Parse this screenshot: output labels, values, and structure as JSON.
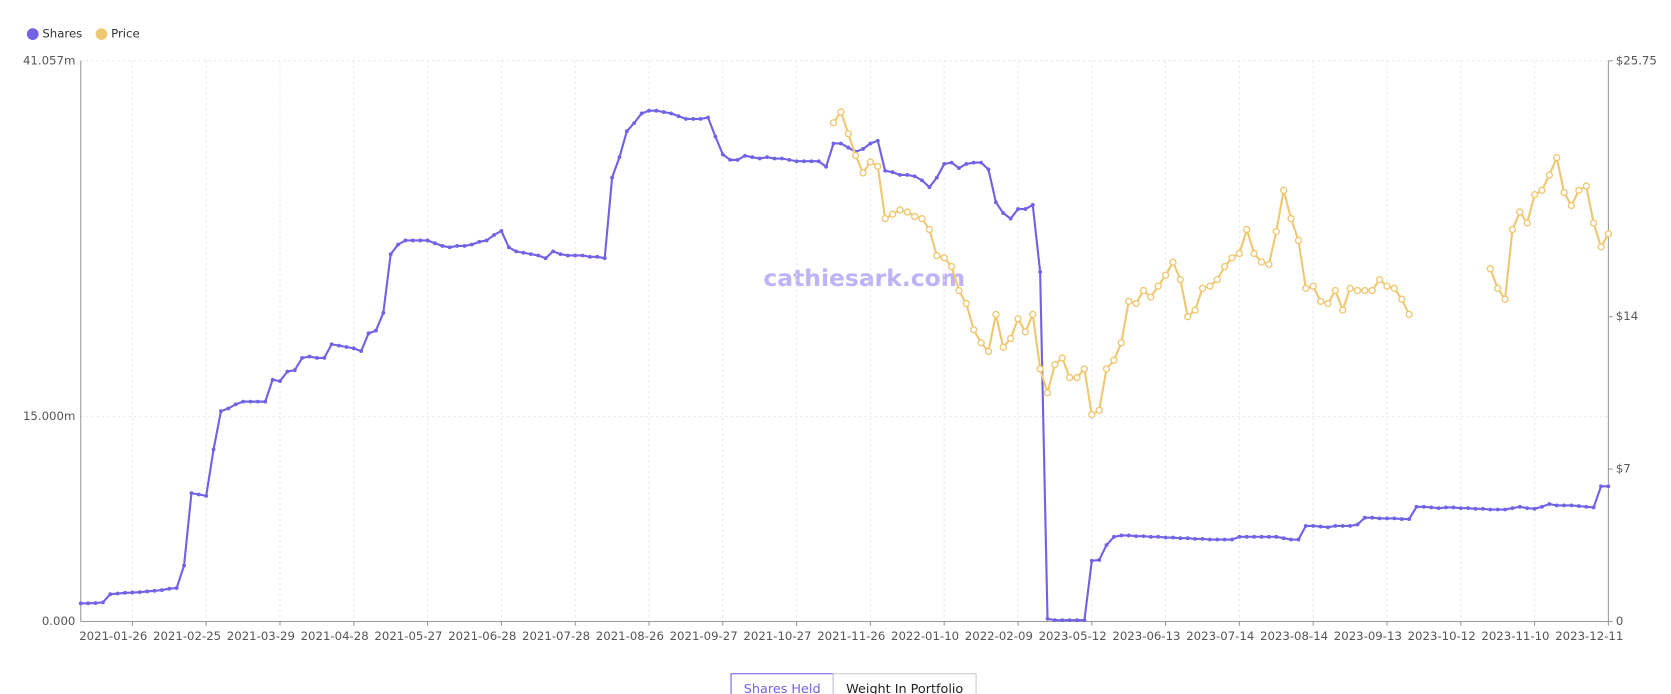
{
  "chart_data": {
    "type": "line",
    "watermark": "cathiesark.com",
    "categories": [
      null,
      null,
      null,
      null,
      null,
      null,
      null,
      "2021-01-26",
      null,
      null,
      null,
      null,
      null,
      null,
      null,
      null,
      null,
      "2021-02-25",
      null,
      null,
      null,
      null,
      null,
      null,
      null,
      null,
      null,
      "2021-03-29",
      null,
      null,
      null,
      null,
      null,
      null,
      null,
      null,
      null,
      "2021-04-28",
      null,
      null,
      null,
      null,
      null,
      null,
      null,
      null,
      null,
      "2021-05-27",
      null,
      null,
      null,
      null,
      null,
      null,
      null,
      null,
      null,
      "2021-06-28",
      null,
      null,
      null,
      null,
      null,
      null,
      null,
      null,
      null,
      "2021-07-28",
      null,
      null,
      null,
      null,
      null,
      null,
      null,
      null,
      null,
      "2021-08-26",
      null,
      null,
      null,
      null,
      null,
      null,
      null,
      null,
      null,
      "2021-09-27",
      null,
      null,
      null,
      null,
      null,
      null,
      null,
      null,
      null,
      "2021-10-27",
      null,
      null,
      null,
      null,
      null,
      null,
      null,
      null,
      null,
      "2021-11-26",
      null,
      null,
      null,
      null,
      null,
      null,
      null,
      null,
      null,
      "2022-01-10",
      null,
      null,
      null,
      null,
      null,
      null,
      null,
      null,
      null,
      "2022-02-09",
      null,
      null,
      null,
      null,
      null,
      null,
      null,
      null,
      null,
      "2023-05-12",
      null,
      null,
      null,
      null,
      null,
      null,
      null,
      null,
      null,
      "2023-06-13",
      null,
      null,
      null,
      null,
      null,
      null,
      null,
      null,
      null,
      "2023-07-14",
      null,
      null,
      null,
      null,
      null,
      null,
      null,
      null,
      null,
      "2023-08-14",
      null,
      null,
      null,
      null,
      null,
      null,
      null,
      null,
      null,
      "2023-09-13",
      null,
      null,
      null,
      null,
      null,
      null,
      null,
      null,
      null,
      "2023-10-12",
      null,
      null,
      null,
      null,
      null,
      null,
      null,
      null,
      null,
      "2023-11-10",
      null,
      null,
      null,
      null,
      null,
      null,
      null,
      null,
      null,
      "2023-12-11"
    ],
    "series": [
      {
        "name": "Shares",
        "color": "#7262e6",
        "axis": "y",
        "values": [
          1.33,
          1.33,
          1.35,
          1.4,
          2.0,
          2.05,
          2.1,
          2.12,
          2.15,
          2.2,
          2.25,
          2.3,
          2.4,
          2.45,
          4.1,
          9.4,
          9.3,
          9.2,
          12.6,
          15.4,
          15.6,
          15.9,
          16.1,
          16.1,
          16.1,
          16.1,
          17.7,
          17.6,
          18.3,
          18.4,
          19.3,
          19.4,
          19.3,
          19.3,
          20.3,
          20.2,
          20.1,
          20.0,
          19.8,
          21.1,
          21.3,
          22.6,
          26.9,
          27.6,
          27.9,
          27.9,
          27.9,
          27.9,
          27.7,
          27.5,
          27.4,
          27.5,
          27.5,
          27.6,
          27.8,
          27.9,
          28.3,
          28.6,
          27.4,
          27.1,
          27.0,
          26.9,
          26.8,
          26.6,
          27.1,
          26.9,
          26.8,
          26.8,
          26.8,
          26.7,
          26.7,
          26.6,
          32.5,
          34.0,
          35.9,
          36.5,
          37.2,
          37.4,
          37.4,
          37.3,
          37.2,
          37.0,
          36.8,
          36.8,
          36.8,
          36.9,
          35.5,
          34.2,
          33.8,
          33.8,
          34.1,
          34.0,
          33.9,
          34.0,
          33.9,
          33.9,
          33.8,
          33.7,
          33.7,
          33.7,
          33.7,
          33.3,
          35.0,
          35.0,
          34.7,
          34.4,
          34.6,
          35.0,
          35.2,
          33.0,
          32.9,
          32.7,
          32.7,
          32.6,
          32.3,
          31.8,
          32.5,
          33.5,
          33.6,
          33.2,
          33.5,
          33.6,
          33.6,
          33.1,
          30.7,
          29.9,
          29.5,
          30.2,
          30.2,
          30.5,
          25.6,
          0.2,
          0.1,
          0.1,
          0.1,
          0.1,
          0.1,
          4.45,
          4.5,
          5.6,
          6.2,
          6.3,
          6.3,
          6.25,
          6.25,
          6.2,
          6.2,
          6.15,
          6.15,
          6.1,
          6.1,
          6.05,
          6.05,
          6.0,
          6.0,
          6.0,
          6.0,
          6.2,
          6.2,
          6.2,
          6.2,
          6.2,
          6.2,
          6.1,
          6.0,
          6.0,
          7.0,
          7.0,
          6.95,
          6.9,
          7.0,
          7.0,
          7.0,
          7.1,
          7.6,
          7.6,
          7.55,
          7.55,
          7.55,
          7.5,
          7.5,
          8.4,
          8.4,
          8.35,
          8.3,
          8.35,
          8.35,
          8.3,
          8.3,
          8.25,
          8.25,
          8.2,
          8.2,
          8.2,
          8.3,
          8.4,
          8.3,
          8.25,
          8.4,
          8.6,
          8.5,
          8.5,
          8.5,
          8.45,
          8.4,
          8.35,
          9.9,
          9.9
        ]
      },
      {
        "name": "Price",
        "color": "#efc873",
        "axis": "y2",
        "values": [
          null,
          null,
          null,
          null,
          null,
          null,
          null,
          null,
          null,
          null,
          null,
          null,
          null,
          null,
          null,
          null,
          null,
          null,
          null,
          null,
          null,
          null,
          null,
          null,
          null,
          null,
          null,
          null,
          null,
          null,
          null,
          null,
          null,
          null,
          null,
          null,
          null,
          null,
          null,
          null,
          null,
          null,
          null,
          null,
          null,
          null,
          null,
          null,
          null,
          null,
          null,
          null,
          null,
          null,
          null,
          null,
          null,
          null,
          null,
          null,
          null,
          null,
          null,
          null,
          null,
          null,
          null,
          null,
          null,
          null,
          null,
          null,
          null,
          null,
          null,
          null,
          null,
          null,
          null,
          null,
          null,
          null,
          null,
          null,
          null,
          null,
          null,
          null,
          null,
          null,
          null,
          null,
          null,
          null,
          null,
          null,
          null,
          null,
          null,
          null,
          null,
          null,
          22.9,
          23.4,
          22.4,
          21.4,
          20.6,
          21.1,
          20.9,
          18.5,
          18.7,
          18.9,
          18.8,
          18.6,
          18.5,
          18.0,
          16.8,
          16.7,
          16.3,
          15.2,
          14.6,
          13.4,
          12.8,
          12.4,
          14.1,
          12.6,
          13.0,
          13.9,
          13.3,
          14.1,
          11.6,
          10.5,
          11.8,
          12.1,
          11.2,
          11.2,
          11.6,
          9.5,
          9.7,
          11.6,
          12.0,
          12.8,
          14.7,
          14.6,
          15.2,
          14.9,
          15.4,
          15.9,
          16.5,
          15.7,
          14.0,
          14.3,
          15.3,
          15.4,
          15.7,
          16.3,
          16.7,
          16.9,
          18.0,
          16.9,
          16.5,
          16.4,
          17.9,
          19.8,
          18.5,
          17.5,
          15.3,
          15.4,
          14.7,
          14.6,
          15.2,
          14.3,
          15.3,
          15.2,
          15.2,
          15.2,
          15.7,
          15.4,
          15.3,
          14.8,
          14.1,
          null,
          null,
          null,
          null,
          null,
          null,
          null,
          null,
          null,
          null,
          16.2,
          15.3,
          14.8,
          18.0,
          18.8,
          18.3,
          19.6,
          19.8,
          20.5,
          21.3,
          19.7,
          19.1,
          19.8,
          20.0,
          18.3,
          17.2,
          17.8
        ]
      }
    ],
    "ylim": [
      0,
      41.057
    ],
    "yticks": [
      {
        "value": 0,
        "label": "0.000"
      },
      {
        "value": 15,
        "label": "15.000m"
      },
      {
        "value": 41.057,
        "label": "41.057m"
      }
    ],
    "y2lim": [
      0,
      25.75
    ],
    "y2ticks": [
      0,
      {
        "value": 7,
        "label": "$7"
      },
      {
        "value": 14,
        "label": "$14"
      },
      {
        "value": 25.75,
        "label": "$25.75"
      }
    ],
    "grid": true
  },
  "buttons": [
    "Shares Held",
    "Weight In Portfolio"
  ]
}
